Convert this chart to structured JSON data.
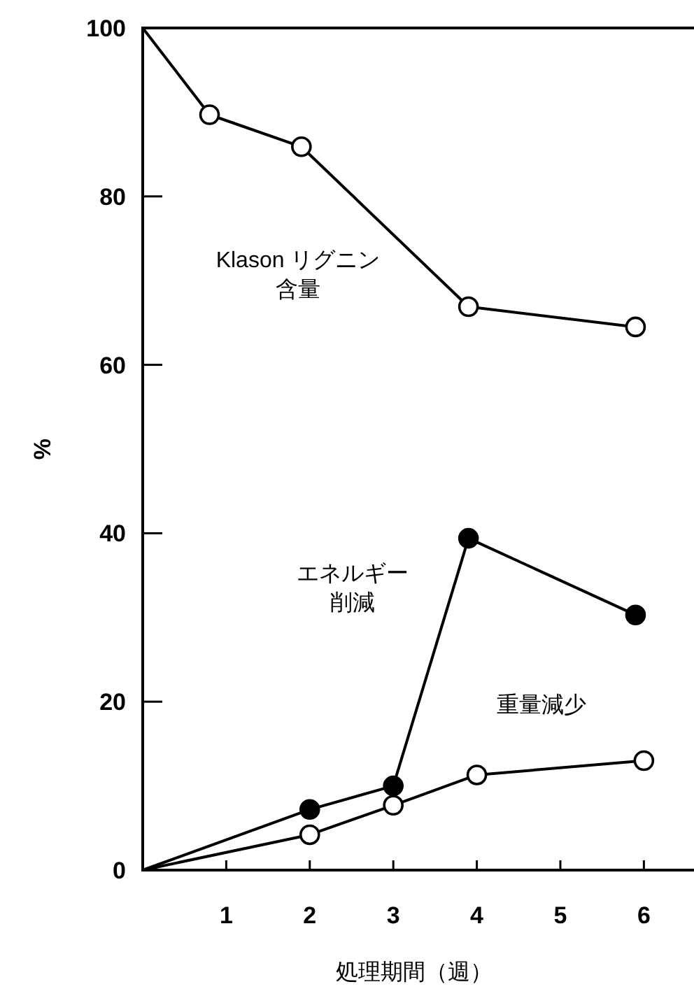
{
  "chart_data": {
    "type": "line",
    "xlabel": "処理期間（週）",
    "ylabel": "%",
    "xlim": [
      0,
      6.6
    ],
    "xticks": [
      1,
      2,
      3,
      4,
      5,
      6
    ],
    "ylim": [
      0,
      100
    ],
    "yticks": [
      0,
      20,
      40,
      60,
      80,
      100
    ],
    "marker": "circle",
    "line_style": "solid",
    "legend": false,
    "grid": false,
    "series": [
      {
        "name": "Klason リグニン含量",
        "color": "#ffffff",
        "x": [
          0,
          0.8,
          1.9,
          3.9,
          5.9
        ],
        "values": [
          100,
          89.7,
          85.9,
          66.9,
          64.5
        ]
      },
      {
        "name": "エネルギー削減",
        "color": "#000000",
        "x": [
          0,
          2,
          3,
          3.9,
          5.9
        ],
        "values": [
          0,
          7.2,
          10.0,
          39.4,
          30.3
        ]
      },
      {
        "name": "重量減少",
        "color": "#ffffff",
        "x": [
          0,
          2,
          3,
          4,
          6
        ],
        "values": [
          0,
          4.2,
          7.7,
          11.3,
          13.0
        ]
      }
    ]
  }
}
